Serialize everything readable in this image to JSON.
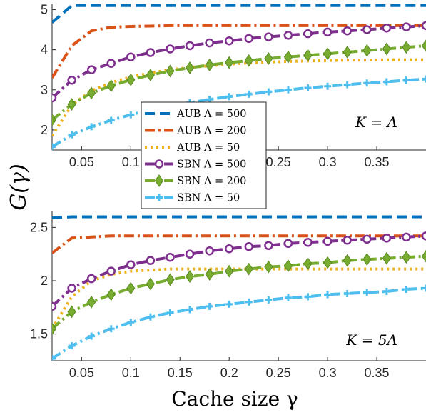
{
  "figure": {
    "ylabel": "G(γ)",
    "xlabel": "Cache size γ"
  },
  "chart_data": [
    {
      "type": "line",
      "annotation": "K = Λ",
      "xlim": [
        0.02,
        0.4
      ],
      "ylim": [
        1.5,
        5.15
      ],
      "xticks": [
        "0.05",
        "0.1",
        "0.15",
        "0.2",
        "0.25",
        "0.3",
        "0.35"
      ],
      "yticks": [
        "2",
        "3",
        "4",
        "5"
      ],
      "legend_position": "left-center",
      "x": [
        0.02,
        0.04,
        0.06,
        0.08,
        0.1,
        0.12,
        0.14,
        0.16,
        0.18,
        0.2,
        0.22,
        0.24,
        0.26,
        0.28,
        0.3,
        0.32,
        0.34,
        0.36,
        0.38,
        0.4
      ],
      "series": [
        {
          "name": "AUB Λ = 500",
          "color": "#0072BD",
          "style": "dash",
          "marker": "none",
          "values": [
            4.68,
            5.1,
            5.1,
            5.1,
            5.1,
            5.1,
            5.1,
            5.1,
            5.1,
            5.1,
            5.1,
            5.1,
            5.1,
            5.1,
            5.1,
            5.1,
            5.1,
            5.1,
            5.1,
            5.1
          ]
        },
        {
          "name": "AUB Λ = 200",
          "color": "#D95319",
          "style": "dashdot",
          "marker": "none",
          "values": [
            3.3,
            4.1,
            4.47,
            4.56,
            4.58,
            4.59,
            4.6,
            4.6,
            4.6,
            4.6,
            4.6,
            4.6,
            4.6,
            4.6,
            4.6,
            4.6,
            4.6,
            4.6,
            4.6,
            4.6
          ]
        },
        {
          "name": "AUB Λ = 50",
          "color": "#EDB120",
          "style": "dot",
          "marker": "none",
          "values": [
            1.85,
            2.62,
            2.98,
            3.18,
            3.32,
            3.42,
            3.5,
            3.56,
            3.6,
            3.64,
            3.67,
            3.69,
            3.71,
            3.72,
            3.73,
            3.74,
            3.74,
            3.75,
            3.75,
            3.75
          ]
        },
        {
          "name": "SBN Λ = 500",
          "color": "#7E2F8E",
          "style": "dashdot",
          "marker": "circle",
          "values": [
            2.8,
            3.24,
            3.5,
            3.66,
            3.82,
            3.93,
            4.02,
            4.1,
            4.17,
            4.22,
            4.28,
            4.32,
            4.36,
            4.4,
            4.44,
            4.47,
            4.5,
            4.54,
            4.57,
            4.6
          ]
        },
        {
          "name": "SBN Λ = 200",
          "color": "#77AC30",
          "style": "dashdot",
          "marker": "diamond",
          "values": [
            2.25,
            2.64,
            2.92,
            3.1,
            3.25,
            3.37,
            3.47,
            3.55,
            3.62,
            3.68,
            3.73,
            3.78,
            3.82,
            3.86,
            3.9,
            3.94,
            3.98,
            4.02,
            4.06,
            4.1
          ]
        },
        {
          "name": "SBN Λ = 50",
          "color": "#4DBEEE",
          "style": "dashdot",
          "marker": "plus",
          "values": [
            1.58,
            1.88,
            2.08,
            2.24,
            2.38,
            2.5,
            2.6,
            2.68,
            2.76,
            2.83,
            2.89,
            2.95,
            3.0,
            3.05,
            3.09,
            3.13,
            3.17,
            3.2,
            3.24,
            3.27
          ]
        }
      ]
    },
    {
      "type": "line",
      "annotation": "K = 5Λ",
      "xlim": [
        0.02,
        0.4
      ],
      "ylim": [
        1.25,
        2.65
      ],
      "xticks": [
        "0.05",
        "0.1",
        "0.15",
        "0.2",
        "0.25",
        "0.3",
        "0.35"
      ],
      "yticks": [
        "1.5",
        "2",
        "2.5"
      ],
      "x": [
        0.02,
        0.04,
        0.06,
        0.08,
        0.1,
        0.12,
        0.14,
        0.16,
        0.18,
        0.2,
        0.22,
        0.24,
        0.26,
        0.28,
        0.3,
        0.32,
        0.34,
        0.36,
        0.38,
        0.4
      ],
      "series": [
        {
          "name": "AUB Λ = 500",
          "color": "#0072BD",
          "style": "dash",
          "marker": "none",
          "values": [
            2.59,
            2.6,
            2.6,
            2.6,
            2.6,
            2.6,
            2.6,
            2.6,
            2.6,
            2.6,
            2.6,
            2.6,
            2.6,
            2.6,
            2.6,
            2.6,
            2.6,
            2.6,
            2.6,
            2.6
          ]
        },
        {
          "name": "AUB Λ = 200",
          "color": "#D95319",
          "style": "dashdot",
          "marker": "none",
          "values": [
            2.26,
            2.4,
            2.41,
            2.42,
            2.42,
            2.42,
            2.42,
            2.42,
            2.42,
            2.42,
            2.42,
            2.42,
            2.42,
            2.42,
            2.42,
            2.42,
            2.42,
            2.42,
            2.42,
            2.42
          ]
        },
        {
          "name": "AUB Λ = 50",
          "color": "#EDB120",
          "style": "dot",
          "marker": "none",
          "values": [
            1.55,
            1.85,
            2.0,
            2.06,
            2.09,
            2.1,
            2.11,
            2.11,
            2.11,
            2.11,
            2.11,
            2.11,
            2.11,
            2.11,
            2.11,
            2.11,
            2.11,
            2.11,
            2.11,
            2.11
          ]
        },
        {
          "name": "SBN Λ = 500",
          "color": "#7E2F8E",
          "style": "dashdot",
          "marker": "circle",
          "values": [
            1.76,
            1.93,
            2.02,
            2.09,
            2.15,
            2.19,
            2.22,
            2.25,
            2.28,
            2.3,
            2.32,
            2.33,
            2.35,
            2.36,
            2.37,
            2.38,
            2.39,
            2.4,
            2.41,
            2.42
          ]
        },
        {
          "name": "SBN Λ = 200",
          "color": "#77AC30",
          "style": "dashdot",
          "marker": "diamond",
          "values": [
            1.55,
            1.71,
            1.8,
            1.87,
            1.93,
            1.97,
            2.01,
            2.04,
            2.06,
            2.09,
            2.11,
            2.13,
            2.14,
            2.16,
            2.17,
            2.19,
            2.2,
            2.21,
            2.22,
            2.23
          ]
        },
        {
          "name": "SBN Λ = 50",
          "color": "#4DBEEE",
          "style": "dashdot",
          "marker": "plus",
          "values": [
            1.27,
            1.39,
            1.48,
            1.55,
            1.61,
            1.66,
            1.7,
            1.73,
            1.76,
            1.78,
            1.8,
            1.82,
            1.84,
            1.85,
            1.87,
            1.88,
            1.89,
            1.9,
            1.92,
            1.93
          ]
        }
      ]
    }
  ]
}
